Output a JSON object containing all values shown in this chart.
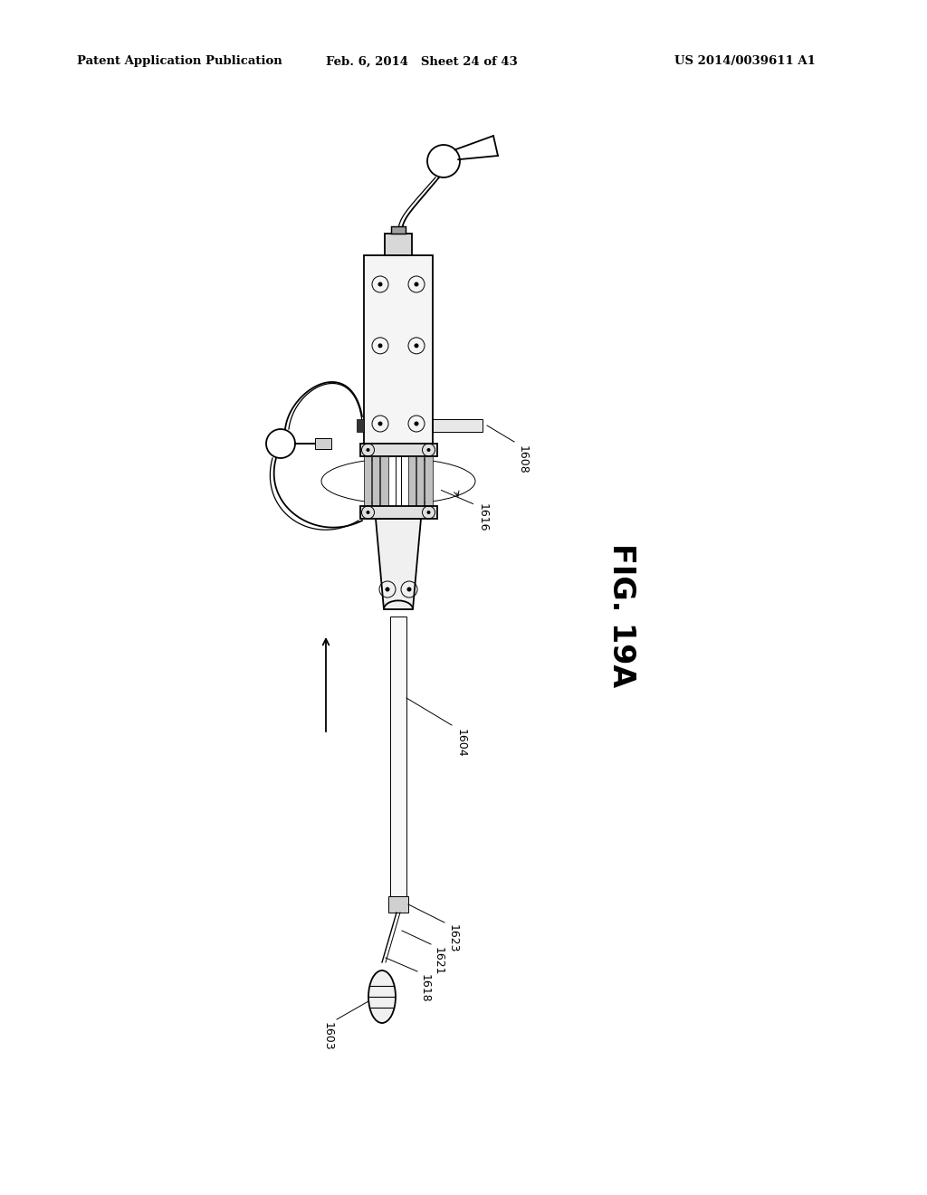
{
  "title_left": "Patent Application Publication",
  "title_mid": "Feb. 6, 2014   Sheet 24 of 43",
  "title_right": "US 2014/0039611 A1",
  "fig_label": "FIG. 19A",
  "background_color": "#ffffff",
  "line_color": "#000000",
  "lw": 1.3,
  "thin_lw": 0.7
}
